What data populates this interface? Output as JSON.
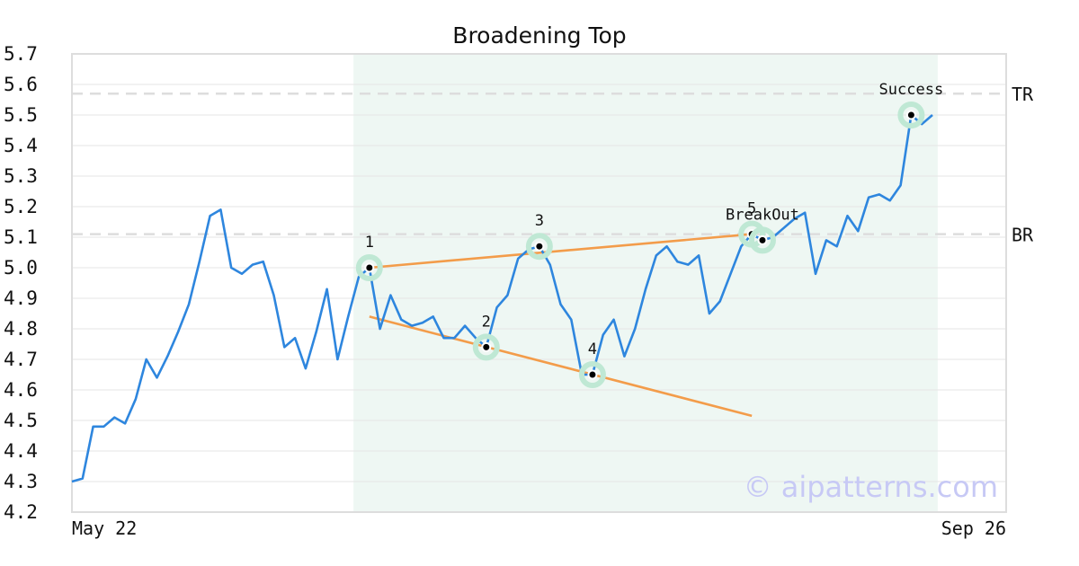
{
  "chart_data": {
    "type": "line",
    "title": "Broadening Top",
    "watermark": "© aipatterns.com",
    "ylim": [
      4.2,
      5.7
    ],
    "yticks": [
      "4.2",
      "4.3",
      "4.4",
      "4.5",
      "4.6",
      "4.7",
      "4.8",
      "4.9",
      "5.0",
      "5.1",
      "5.2",
      "5.3",
      "5.4",
      "5.5",
      "5.6",
      "5.7"
    ],
    "x_start_label": "May 22",
    "x_end_label": "Sep 26",
    "grid": true,
    "colors": {
      "price": "#2e86de",
      "trendline": "#f39c4a",
      "highlight": "#eef7f3",
      "marker_ring": "#bfe8d4",
      "level": "#dddddd"
    },
    "series": [
      {
        "values": [
          4.3,
          4.31,
          4.48,
          4.48,
          4.51,
          4.49,
          4.57,
          4.7,
          4.64,
          4.71,
          4.79,
          4.88,
          5.02,
          5.17,
          5.19,
          5.0,
          4.98,
          5.01,
          5.02,
          4.91,
          4.74,
          4.77,
          4.67,
          4.79,
          4.93,
          4.7,
          4.84,
          4.97,
          5.0,
          4.8,
          4.91,
          4.83,
          4.81,
          4.82,
          4.84,
          4.77,
          4.77,
          4.81,
          4.77,
          4.74,
          4.87,
          4.91,
          5.03,
          5.06,
          5.07,
          5.01,
          4.88,
          4.83,
          4.65,
          4.65,
          4.78,
          4.83,
          4.71,
          4.8,
          4.93,
          5.04,
          5.07,
          5.02,
          5.01,
          5.04,
          4.85,
          4.89,
          4.98,
          5.07,
          5.11,
          5.09,
          5.1,
          5.13,
          5.16,
          5.18,
          4.98,
          5.09,
          5.07,
          5.17,
          5.12,
          5.23,
          5.24,
          5.22,
          5.27,
          5.5,
          5.47,
          5.5
        ]
      }
    ],
    "highlight_range": [
      26.5,
      81.5
    ],
    "levels": [
      {
        "label": "TR",
        "value": 5.57
      },
      {
        "label": "BR",
        "value": 5.11
      }
    ],
    "trendlines": [
      {
        "from": [
          28,
          5.0
        ],
        "to": [
          64,
          5.11
        ]
      },
      {
        "from": [
          28,
          4.84
        ],
        "to": [
          64,
          4.515
        ]
      }
    ],
    "points": [
      {
        "label": "1",
        "index": 28,
        "value": 5.0
      },
      {
        "label": "2",
        "index": 39,
        "value": 4.74
      },
      {
        "label": "3",
        "index": 44,
        "value": 5.07
      },
      {
        "label": "4",
        "index": 49,
        "value": 4.65
      },
      {
        "label": "5",
        "index": 64,
        "value": 5.11
      },
      {
        "label": "BreakOut",
        "index": 65,
        "value": 5.09
      },
      {
        "label": "Success",
        "index": 79,
        "value": 5.5
      }
    ]
  }
}
